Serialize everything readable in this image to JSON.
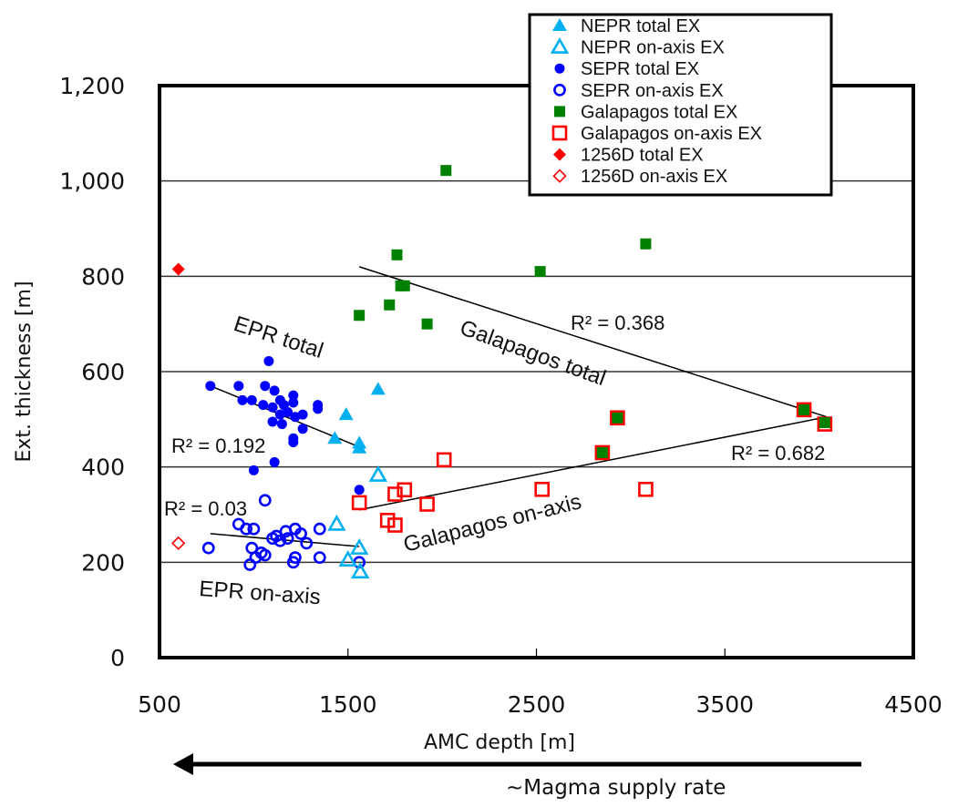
{
  "chart_data": {
    "type": "scatter",
    "title": "",
    "xlabel": "AMC depth [m]",
    "ylabel": "Ext. thickness [m]",
    "xlim": [
      500,
      4500
    ],
    "ylim": [
      0,
      1200
    ],
    "x_ticks": [
      500,
      1500,
      2500,
      3500,
      4500
    ],
    "x_tick_labels": [
      "500",
      "1500",
      "2500",
      "3500",
      "4500"
    ],
    "y_ticks": [
      0,
      200,
      400,
      600,
      800,
      1000,
      1200
    ],
    "y_tick_labels": [
      "0",
      "200",
      "400",
      "600",
      "800",
      "1,000",
      "1,200"
    ],
    "grid": "horizontal",
    "legend_position": "top-right",
    "arrow_caption": "~Magma supply rate",
    "arrow_direction": "left",
    "series": [
      {
        "name": "NEPR total EX",
        "marker": "triangle",
        "filled": true,
        "color": "#00b0f0",
        "points": [
          [
            1660,
            563
          ],
          [
            1490,
            510
          ],
          [
            1430,
            460
          ],
          [
            1560,
            450
          ],
          [
            1560,
            440
          ]
        ]
      },
      {
        "name": "NEPR on-axis EX",
        "marker": "triangle",
        "filled": false,
        "color": "#00b0f0",
        "points": [
          [
            1660,
            383
          ],
          [
            1440,
            280
          ],
          [
            1560,
            230
          ],
          [
            1500,
            205
          ],
          [
            1565,
            180
          ]
        ]
      },
      {
        "name": "SEPR total EX",
        "marker": "circle",
        "filled": true,
        "color": "#0000ff",
        "points": [
          [
            1080,
            622
          ],
          [
            770,
            570
          ],
          [
            920,
            570
          ],
          [
            1060,
            570
          ],
          [
            1110,
            560
          ],
          [
            1210,
            550
          ],
          [
            1140,
            540
          ],
          [
            990,
            540
          ],
          [
            940,
            540
          ],
          [
            1160,
            530
          ],
          [
            1210,
            535
          ],
          [
            1050,
            530
          ],
          [
            1100,
            525
          ],
          [
            1340,
            530
          ],
          [
            1340,
            522
          ],
          [
            1140,
            510
          ],
          [
            1180,
            515
          ],
          [
            1260,
            510
          ],
          [
            1220,
            505
          ],
          [
            1100,
            495
          ],
          [
            1150,
            490
          ],
          [
            1260,
            480
          ],
          [
            1210,
            460
          ],
          [
            1210,
            452
          ],
          [
            1110,
            410
          ],
          [
            1000,
            393
          ],
          [
            1560,
            352
          ]
        ]
      },
      {
        "name": "SEPR on-axis EX",
        "marker": "circle",
        "filled": false,
        "color": "#0000ff",
        "points": [
          [
            1060,
            330
          ],
          [
            920,
            280
          ],
          [
            960,
            270
          ],
          [
            1000,
            270
          ],
          [
            1220,
            270
          ],
          [
            1170,
            265
          ],
          [
            1250,
            260
          ],
          [
            1120,
            255
          ],
          [
            1100,
            250
          ],
          [
            1350,
            270
          ],
          [
            1140,
            245
          ],
          [
            1180,
            250
          ],
          [
            1280,
            240
          ],
          [
            760,
            230
          ],
          [
            990,
            230
          ],
          [
            1060,
            215
          ],
          [
            1040,
            220
          ],
          [
            1010,
            210
          ],
          [
            1220,
            210
          ],
          [
            1210,
            200
          ],
          [
            1350,
            210
          ],
          [
            980,
            195
          ],
          [
            1560,
            200
          ]
        ]
      },
      {
        "name": "Galapagos total EX",
        "marker": "square",
        "filled": true,
        "color": "#008000",
        "points": [
          [
            2020,
            1022
          ],
          [
            3080,
            868
          ],
          [
            1760,
            845
          ],
          [
            2520,
            810
          ],
          [
            1780,
            780
          ],
          [
            1800,
            780
          ],
          [
            1560,
            718
          ],
          [
            1720,
            740
          ],
          [
            1920,
            700
          ],
          [
            2930,
            503
          ],
          [
            3920,
            520
          ],
          [
            4030,
            493
          ],
          [
            2850,
            430
          ]
        ]
      },
      {
        "name": "Galapagos on-axis EX",
        "marker": "square",
        "filled": false,
        "color": "#ff0000",
        "points": [
          [
            2010,
            415
          ],
          [
            1800,
            352
          ],
          [
            1750,
            343
          ],
          [
            1560,
            325
          ],
          [
            1920,
            322
          ],
          [
            2530,
            353
          ],
          [
            3080,
            353
          ],
          [
            1710,
            288
          ],
          [
            1750,
            278
          ],
          [
            2930,
            503
          ],
          [
            3920,
            520
          ],
          [
            4030,
            490
          ],
          [
            2850,
            430
          ]
        ]
      },
      {
        "name": "1256D total EX",
        "marker": "diamond",
        "filled": true,
        "color": "#ff0000",
        "points": [
          [
            600,
            815
          ]
        ]
      },
      {
        "name": "1256D on-axis EX",
        "marker": "diamond",
        "filled": false,
        "color": "#ff0000",
        "points": [
          [
            600,
            240
          ]
        ]
      }
    ],
    "trendlines": [
      {
        "name": "EPR total",
        "label": "EPR total",
        "r2_label": "R² = 0.192",
        "x": [
          770,
          1560
        ],
        "y": [
          570,
          442
        ]
      },
      {
        "name": "EPR on-axis",
        "label": "EPR  on-axis",
        "r2_label": "R² = 0.03",
        "x": [
          770,
          1560
        ],
        "y": [
          260,
          233
        ]
      },
      {
        "name": "Galapagos total",
        "label": "Galapagos  total",
        "r2_label": "R² = 0.368",
        "x": [
          1560,
          4040
        ],
        "y": [
          820,
          505
        ]
      },
      {
        "name": "Galapagos on-axis",
        "label": "Galapagos  on-axis",
        "r2_label": "R² = 0.682",
        "x": [
          1560,
          4040
        ],
        "y": [
          310,
          505
        ]
      }
    ]
  }
}
